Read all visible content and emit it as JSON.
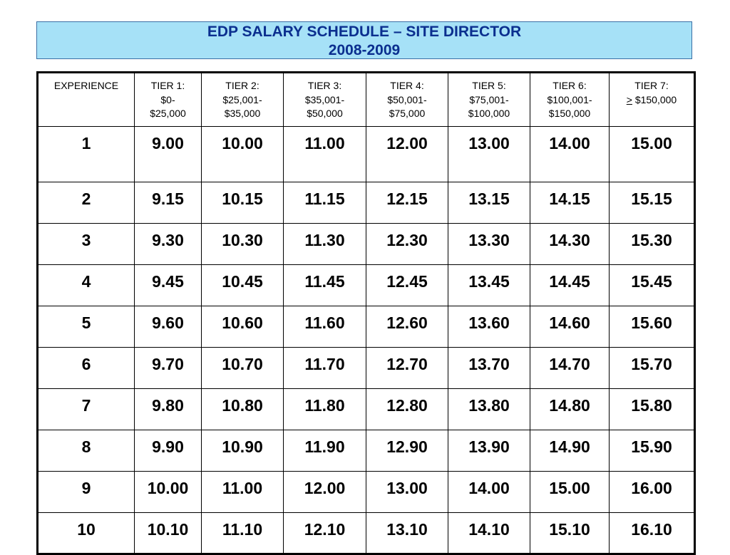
{
  "title": {
    "line1": "EDP SALARY SCHEDULE – SITE DIRECTOR",
    "line2": "2008-2009"
  },
  "table": {
    "experience_header": "EXPERIENCE",
    "tiers": [
      {
        "name": "TIER 1:",
        "range_line1": "$0-",
        "range_line2": "$25,000"
      },
      {
        "name": "TIER 2:",
        "range_line1": "$25,001-",
        "range_line2": "$35,000"
      },
      {
        "name": "TIER 3:",
        "range_line1": "$35,001-",
        "range_line2": "$50,000"
      },
      {
        "name": "TIER 4:",
        "range_line1": "$50,001-",
        "range_line2": "$75,000"
      },
      {
        "name": "TIER 5:",
        "range_line1": "$75,001-",
        "range_line2": "$100,000"
      },
      {
        "name": "TIER 6:",
        "range_line1": "$100,001-",
        "range_line2": "$150,000"
      },
      {
        "name": "TIER 7:",
        "range_symbol": ">",
        "range_line1": " $150,000",
        "range_line2": ""
      }
    ],
    "rows": [
      {
        "experience": "1",
        "values": [
          "9.00",
          "10.00",
          "11.00",
          "12.00",
          "13.00",
          "14.00",
          "15.00"
        ]
      },
      {
        "experience": "2",
        "values": [
          "9.15",
          "10.15",
          "11.15",
          "12.15",
          "13.15",
          "14.15",
          "15.15"
        ]
      },
      {
        "experience": "3",
        "values": [
          "9.30",
          "10.30",
          "11.30",
          "12.30",
          "13.30",
          "14.30",
          "15.30"
        ]
      },
      {
        "experience": "4",
        "values": [
          "9.45",
          "10.45",
          "11.45",
          "12.45",
          "13.45",
          "14.45",
          "15.45"
        ]
      },
      {
        "experience": "5",
        "values": [
          "9.60",
          "10.60",
          "11.60",
          "12.60",
          "13.60",
          "14.60",
          "15.60"
        ]
      },
      {
        "experience": "6",
        "values": [
          "9.70",
          "10.70",
          "11.70",
          "12.70",
          "13.70",
          "14.70",
          "15.70"
        ]
      },
      {
        "experience": "7",
        "values": [
          "9.80",
          "10.80",
          "11.80",
          "12.80",
          "13.80",
          "14.80",
          "15.80"
        ]
      },
      {
        "experience": "8",
        "values": [
          "9.90",
          "10.90",
          "11.90",
          "12.90",
          "13.90",
          "14.90",
          "15.90"
        ]
      },
      {
        "experience": "9",
        "values": [
          "10.00",
          "11.00",
          "12.00",
          "13.00",
          "14.00",
          "15.00",
          "16.00"
        ]
      },
      {
        "experience": "10",
        "values": [
          "10.10",
          "11.10",
          "12.10",
          "13.10",
          "14.10",
          "15.10",
          "16.10"
        ]
      }
    ]
  },
  "colors": {
    "title_background": "#a6e1f7",
    "title_text": "#0b2f8f",
    "grid_lines": "#000000"
  }
}
